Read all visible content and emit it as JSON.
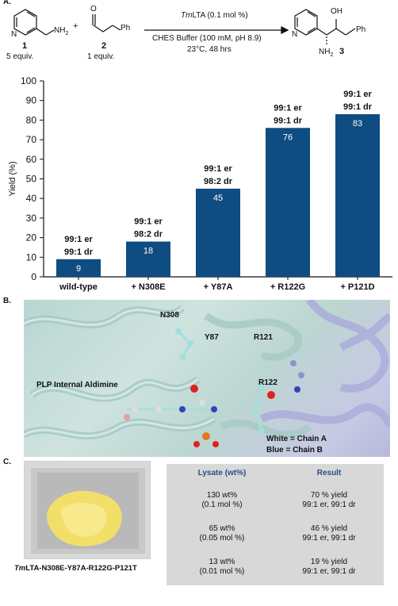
{
  "panel_labels": {
    "a": "A.",
    "b": "B.",
    "c": "C."
  },
  "reaction": {
    "reactant1_number": "1",
    "reactant1_equiv": "5 equiv.",
    "reactant1_nh2": "NH",
    "reactant1_nh2_sub": "2",
    "plus": "+",
    "reactant2_number": "2",
    "reactant2_equiv": "1 equiv.",
    "reactant2_o": "O",
    "reactant2_ph": "Ph",
    "catalyst_italic": "Tm",
    "catalyst_rest": "LTA (0.1 mol %)",
    "conditions_line1": "CHES Buffer (100 mM, pH 8.9)",
    "conditions_line2": "23°C, 48 hrs",
    "product_oh": "OH",
    "product_nh2": "NH",
    "product_nh2_sub": "2",
    "product_ph": "Ph",
    "product_number": "3",
    "ring_n": "N"
  },
  "chart_data": {
    "type": "bar",
    "categories": [
      "wild-type",
      "+ N308E",
      "+ Y87A",
      "+ R122G",
      "+ P121D"
    ],
    "values": [
      9,
      18,
      45,
      76,
      83
    ],
    "er_labels": [
      "99:1 er",
      "99:1 er",
      "99:1 er",
      "99:1 er",
      "99:1 er"
    ],
    "dr_labels": [
      "99:1 dr",
      "98:2 dr",
      "98:2 dr",
      "99:1 dr",
      "99:1 dr"
    ],
    "ylabel": "Yield (%)",
    "xlabel": "",
    "ylim": [
      0,
      100
    ],
    "yticks": [
      0,
      10,
      20,
      30,
      40,
      50,
      60,
      70,
      80,
      90,
      100
    ],
    "bar_color": "#0f4c81",
    "grid": false,
    "legend": "none"
  },
  "protein": {
    "labels": {
      "n308": "N308",
      "y87": "Y87",
      "r121": "R121",
      "r122": "R122",
      "plp": "PLP Internal Aldimine",
      "chain_a": "White = Chain A",
      "chain_b": "Blue = Chain B"
    },
    "colors": {
      "chain_a": "#bcd8d4",
      "chain_b": "#b8bbdf"
    }
  },
  "photo": {
    "caption_italic": "Tm",
    "caption_rest": "LTA-N308E-Y87A-R122G-P121T",
    "powder_color": "#f2df6a"
  },
  "table": {
    "headers": [
      "Lysate (wt%)",
      "Result"
    ],
    "header_color": "#2b4e86",
    "rows": [
      {
        "lysate": "130 wt%",
        "mol": "(0.1 mol %)",
        "yield": "70 % yield",
        "sel": "99:1 er, 99:1 dr"
      },
      {
        "lysate": "65 wt%",
        "mol": "(0.05 mol %)",
        "yield": "46 % yield",
        "sel": "99:1 er, 99:1 dr"
      },
      {
        "lysate": "13 wt%",
        "mol": "(0.01 mol %)",
        "yield": "19 % yield",
        "sel": "99:1 er, 99:1 dr"
      }
    ]
  }
}
